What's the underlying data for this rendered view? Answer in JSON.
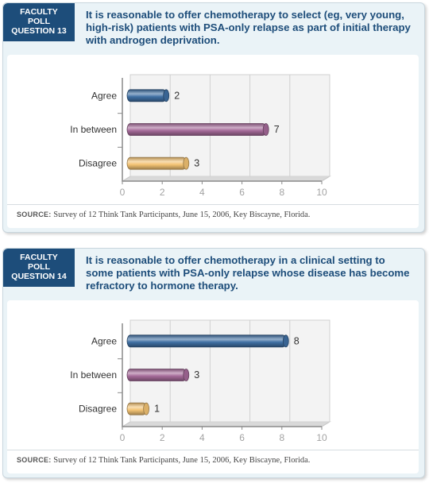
{
  "polls": [
    {
      "badge": [
        "FACULTY",
        "POLL",
        "QUESTION 13"
      ],
      "question": "It is reasonable to offer chemotherapy to select (eg, very young, high-risk) patients with PSA-only relapse as part of initial therapy with androgen deprivation.",
      "source_label": "SOURCE:",
      "source_text": "Survey of 12 Think Tank Participants, June 15, 2006, Key Biscayne, Florida.",
      "chart_data": {
        "type": "bar",
        "orientation": "horizontal",
        "categories": [
          "Agree",
          "In between",
          "Disagree"
        ],
        "values": [
          2,
          7,
          3
        ],
        "colors": [
          "#3f6fa3",
          "#a56a99",
          "#f3c374"
        ],
        "xlim": [
          0,
          10
        ],
        "xticks": [
          "0",
          "2",
          "4",
          "6",
          "8",
          "10"
        ],
        "grid": true
      }
    },
    {
      "badge": [
        "FACULTY",
        "POLL",
        "QUESTION 14"
      ],
      "question": "It is reasonable to offer chemotherapy in a clinical setting to some patients with PSA-only relapse whose disease has become refractory to hormone therapy.",
      "source_label": "SOURCE:",
      "source_text": "Survey of 12 Think Tank Participants, June 15, 2006, Key Biscayne, Florida.",
      "chart_data": {
        "type": "bar",
        "orientation": "horizontal",
        "categories": [
          "Agree",
          "In between",
          "Disagree"
        ],
        "values": [
          8,
          3,
          1
        ],
        "colors": [
          "#3f6fa3",
          "#a56a99",
          "#f3c374"
        ],
        "xlim": [
          0,
          10
        ],
        "xticks": [
          "0",
          "2",
          "4",
          "6",
          "8",
          "10"
        ],
        "grid": true
      }
    }
  ]
}
